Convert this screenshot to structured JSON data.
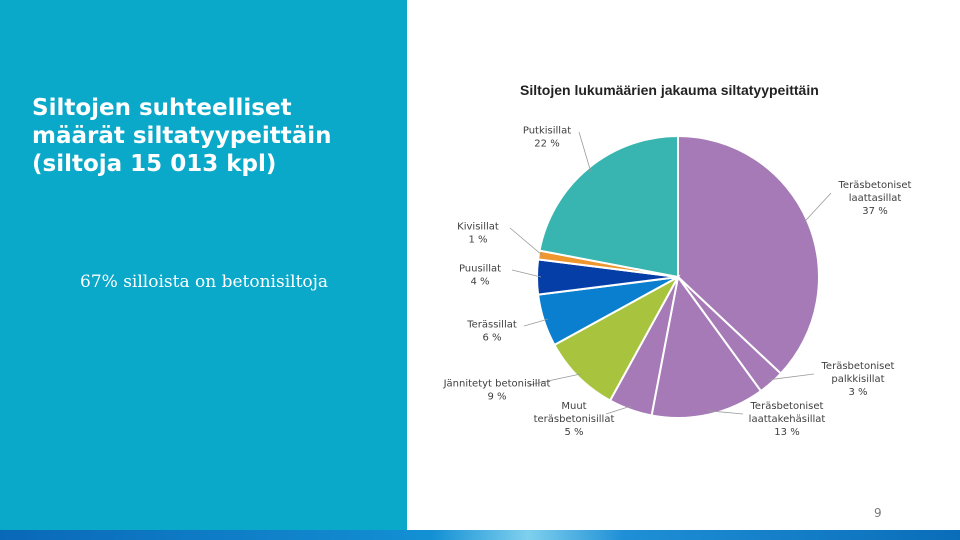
{
  "slide": {
    "title_lines": [
      "Siltojen suhteelliset",
      "määrät siltatyypeittäin",
      "(siltoja 15 013  kpl)"
    ],
    "note": "67% silloista on betonisiltoja",
    "page_number": "9"
  },
  "colors": {
    "panel": "#0aa8c9",
    "slices": [
      "#a57ab6",
      "#a57ab6",
      "#a57ab6",
      "#a57ab6",
      "#a8c43e",
      "#0a7fcf",
      "#063ea8",
      "#f0962e",
      "#38b5b0"
    ],
    "leader": "#9a9a9a"
  },
  "chart_data": {
    "type": "pie",
    "title": "Siltojen lukumäärien jakauma siltatyypeittäin",
    "start": "12 o'clock",
    "direction": "clockwise",
    "slices": [
      {
        "lines": [
          "Teräsbetoniset",
          "laattasillat"
        ],
        "value": 37,
        "value_label": "37 %"
      },
      {
        "lines": [
          "Teräsbetoniset",
          "palkkisillat"
        ],
        "value": 3,
        "value_label": "3 %"
      },
      {
        "lines": [
          "Teräsbetoniset",
          "laattakehäsillat"
        ],
        "value": 13,
        "value_label": "13 %"
      },
      {
        "lines": [
          "Muut",
          "teräsbetonisillat"
        ],
        "value": 5,
        "value_label": "5 %"
      },
      {
        "lines": [
          "Jännitetyt betonisillat"
        ],
        "value": 9,
        "value_label": "9 %"
      },
      {
        "lines": [
          "Terässillat"
        ],
        "value": 6,
        "value_label": "6 %"
      },
      {
        "lines": [
          "Puusillat"
        ],
        "value": 4,
        "value_label": "4 %"
      },
      {
        "lines": [
          "Kivisillat"
        ],
        "value": 1,
        "value_label": "1 %"
      },
      {
        "lines": [
          "Putkisillat"
        ],
        "value": 22,
        "value_label": "22 %"
      }
    ]
  }
}
